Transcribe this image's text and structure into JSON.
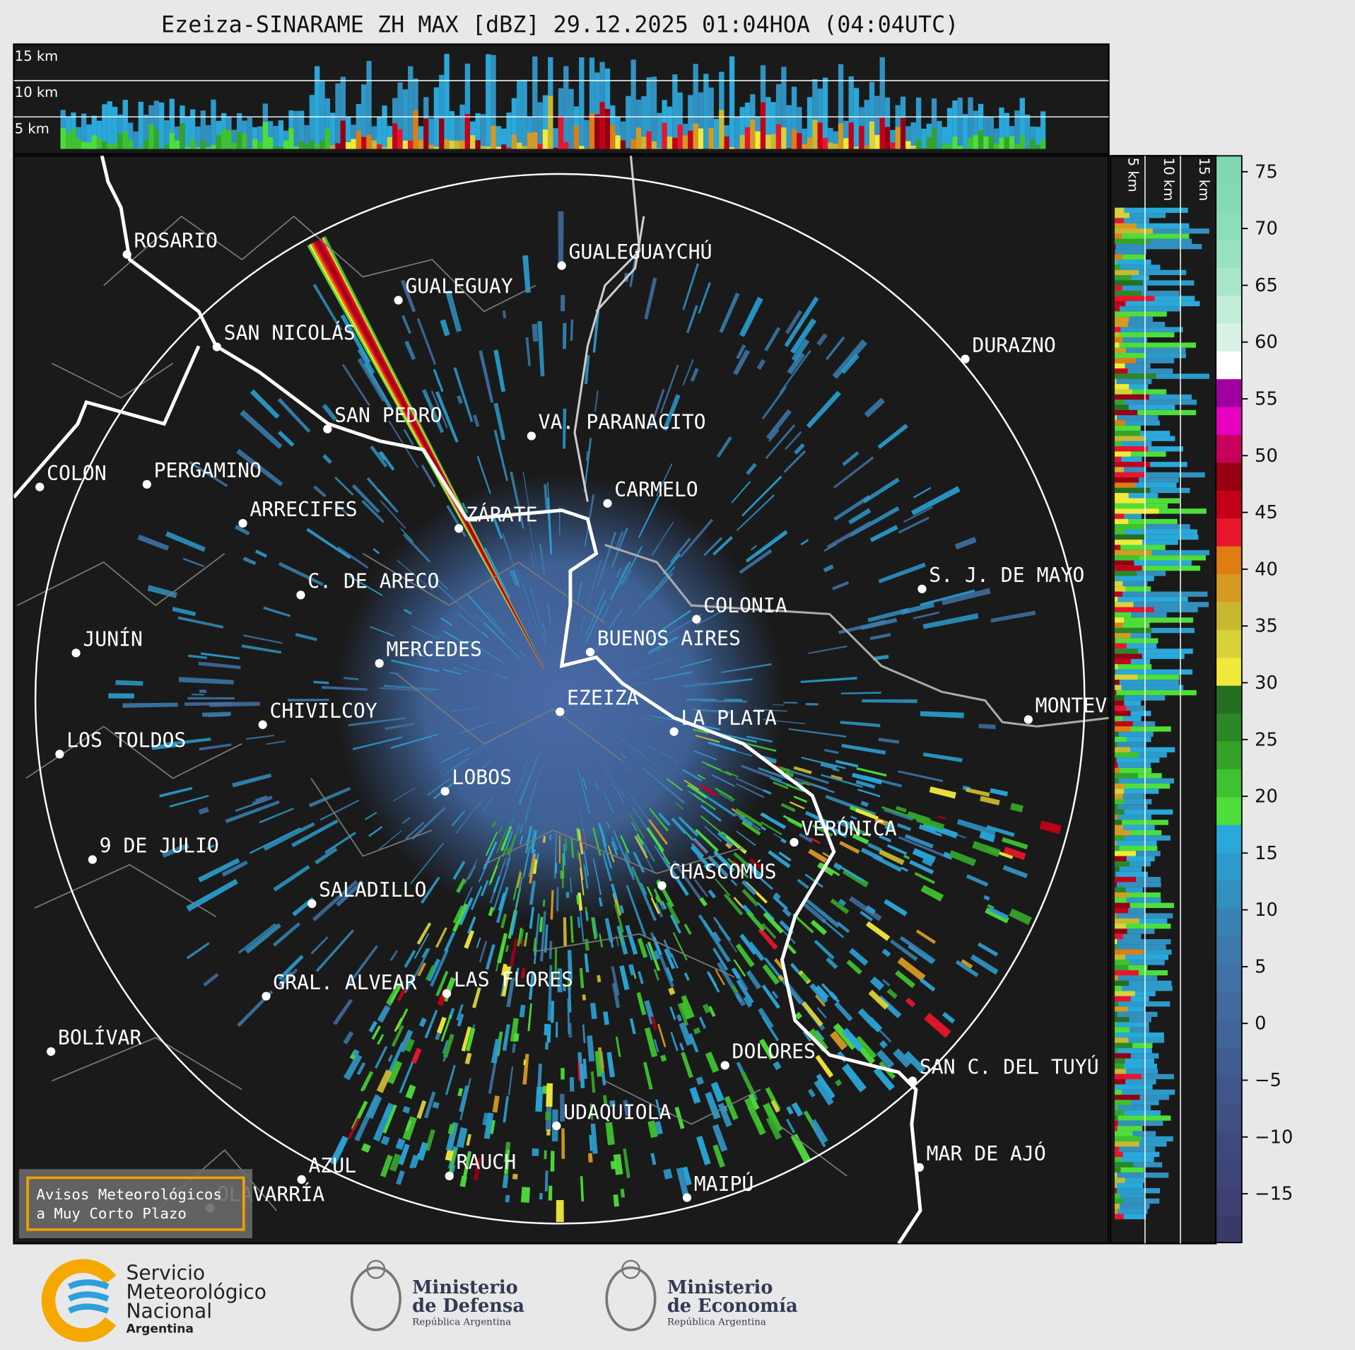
{
  "title": "Ezeiza-SINARAME ZH MAX [dBZ] 29.12.2025 01:04HOA (04:04UTC)",
  "top_panel": {
    "height_labels": [
      "15 km",
      "10 km",
      "5 km"
    ]
  },
  "side_panel": {
    "height_labels": [
      "5 km",
      "10 km",
      "15 km"
    ]
  },
  "cities": [
    "ROSARIO",
    "GUALEGUAYCHÚ",
    "GUALEGUAY",
    "SAN NICOLÁS",
    "DURAZNO",
    "SAN PEDRO",
    "VA. PARANACITO",
    "COLON",
    "PERGAMINO",
    "CARMELO",
    "ARRECIFES",
    "ZÁRATE",
    "S. J. DE MAYO",
    "C. DE ARECO",
    "COLONIA",
    "BUENOS AIRES",
    "JUNÍN",
    "MERCEDES",
    "EZEIZA",
    "CHIVILCOY",
    "MONTEVIDEO",
    "LA PLATA",
    "LOS TOLDOS",
    "LOBOS",
    "VERÓNICA",
    "9 DE JULIO",
    "CHASCOMÚS",
    "SALADILLO",
    "GRAL. ALVEAR",
    "LAS FLORES",
    "BOLÍVAR",
    "DOLORES",
    "SAN C. DEL TUYÚ",
    "UDAQUIOLA",
    "MAR DE AJÓ",
    "AZUL",
    "RAUCH",
    "MAIPÚ",
    "OLAVARRÍA"
  ],
  "colorbar": {
    "range": [
      -19.3,
      76.4
    ],
    "ticks": [
      {
        "value": -15,
        "label": "−15"
      },
      {
        "value": -10,
        "label": "−10"
      },
      {
        "value": -5,
        "label": "−5"
      },
      0,
      5,
      10,
      15,
      20,
      25,
      30,
      35,
      40,
      45,
      50,
      55,
      60,
      65,
      70,
      75
    ],
    "colors": [
      "#3a3a68",
      "#3c3f70",
      "#3d4477",
      "#3e4a7e",
      "#3f5085",
      "#40568b",
      "#405d92",
      "#416499",
      "#426a9f",
      "#4271a5",
      "#3e79ac",
      "#3883b4",
      "#3290bf",
      "#2c9bcb",
      "#2aa8da",
      "#4ede3a",
      "#3fc22f",
      "#35a32a",
      "#2c8726",
      "#256f22",
      "#f2ea3a",
      "#d8d23a",
      "#c8b830",
      "#d69a22",
      "#e07d12",
      "#e8152c",
      "#c40018",
      "#960010",
      "#c8005c",
      "#e800c0",
      "#a000a0",
      "#ffffff",
      "#d8f2e6",
      "#c0ecd8",
      "#a8e6ca",
      "#98e2c2",
      "#8cdeba",
      "#84dab4",
      "#80d8b0"
    ]
  },
  "notice": [
    "Avisos Meteorológicos",
    "a Muy Corto Plazo"
  ],
  "logos": {
    "smn": [
      "Servicio",
      "Meteorológico",
      "Nacional",
      "Argentina"
    ],
    "defensa": [
      "Ministerio",
      "de Defensa",
      "República Argentina"
    ],
    "economia": [
      "Ministerio",
      "de Economía",
      "República Argentina"
    ]
  }
}
